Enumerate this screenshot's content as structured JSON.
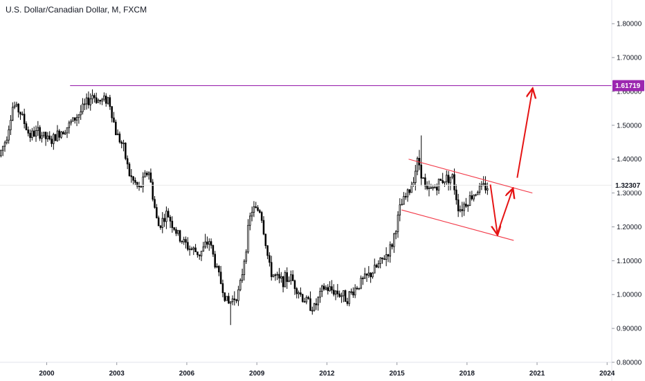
{
  "header": {
    "title": "U.S. Dollar/Canadian Dollar, M, FXCM"
  },
  "chart_data": {
    "type": "candlestick",
    "title": "U.S. Dollar/Canadian Dollar, M, FXCM",
    "x_unit": "year",
    "xlim": [
      1998.0,
      2024.2
    ],
    "ylim": [
      0.8,
      1.87
    ],
    "x_ticks": [
      "2000",
      "2003",
      "2006",
      "2009",
      "2012",
      "2015",
      "2018",
      "2021",
      "2024"
    ],
    "y_ticks": [
      "0.80000",
      "0.90000",
      "1.00000",
      "1.10000",
      "1.20000",
      "1.30000",
      "1.40000",
      "1.50000",
      "1.60000",
      "1.70000",
      "1.80000"
    ],
    "price_path": [
      [
        1998.0,
        1.41
      ],
      [
        1998.3,
        1.46
      ],
      [
        1998.6,
        1.56
      ],
      [
        1998.9,
        1.54
      ],
      [
        1999.3,
        1.47
      ],
      [
        1999.7,
        1.48
      ],
      [
        2000.2,
        1.45
      ],
      [
        2000.6,
        1.48
      ],
      [
        2001.0,
        1.5
      ],
      [
        2001.5,
        1.54
      ],
      [
        2002.0,
        1.59
      ],
      [
        2002.3,
        1.57
      ],
      [
        2002.7,
        1.58
      ],
      [
        2003.0,
        1.48
      ],
      [
        2003.3,
        1.44
      ],
      [
        2003.6,
        1.35
      ],
      [
        2004.0,
        1.31
      ],
      [
        2004.4,
        1.37
      ],
      [
        2004.8,
        1.2
      ],
      [
        2005.2,
        1.24
      ],
      [
        2005.7,
        1.17
      ],
      [
        2006.1,
        1.14
      ],
      [
        2006.6,
        1.12
      ],
      [
        2007.0,
        1.16
      ],
      [
        2007.3,
        1.08
      ],
      [
        2007.8,
        0.97
      ],
      [
        2008.3,
        1.01
      ],
      [
        2008.8,
        1.25
      ],
      [
        2009.2,
        1.25
      ],
      [
        2009.6,
        1.07
      ],
      [
        2010.0,
        1.04
      ],
      [
        2010.5,
        1.05
      ],
      [
        2011.0,
        0.99
      ],
      [
        2011.5,
        0.96
      ],
      [
        2011.9,
        1.02
      ],
      [
        2012.4,
        1.01
      ],
      [
        2012.9,
        0.99
      ],
      [
        2013.4,
        1.03
      ],
      [
        2013.9,
        1.06
      ],
      [
        2014.3,
        1.09
      ],
      [
        2014.8,
        1.14
      ],
      [
        2015.2,
        1.26
      ],
      [
        2015.6,
        1.31
      ],
      [
        2015.95,
        1.4
      ],
      [
        2016.3,
        1.3
      ],
      [
        2016.7,
        1.32
      ],
      [
        2017.0,
        1.34
      ],
      [
        2017.4,
        1.35
      ],
      [
        2017.7,
        1.25
      ],
      [
        2018.1,
        1.28
      ],
      [
        2018.5,
        1.31
      ],
      [
        2018.9,
        1.32
      ]
    ],
    "price_range": {
      "high": 1.47,
      "low": 0.91
    },
    "last_price": 1.32307,
    "last_price_label": "1.32307",
    "horizontal_line": {
      "value": 1.61719,
      "label": "1.61719",
      "x_start": 2001.0,
      "color": "#9c27b0"
    },
    "channel": {
      "upper": [
        [
          2015.5,
          1.4
        ],
        [
          2020.8,
          1.3
        ]
      ],
      "lower": [
        [
          2015.2,
          1.25
        ],
        [
          2020.0,
          1.16
        ]
      ],
      "color": "#f23645"
    },
    "projection_arrows": [
      [
        [
          2019.0,
          1.325
        ],
        [
          2019.3,
          1.18
        ]
      ],
      [
        [
          2019.3,
          1.18
        ],
        [
          2019.95,
          1.31
        ]
      ],
      [
        [
          2020.15,
          1.345
        ],
        [
          2020.8,
          1.605
        ]
      ]
    ],
    "arrow_color": "#e51414",
    "candle_color": "#000000",
    "grid": false
  }
}
